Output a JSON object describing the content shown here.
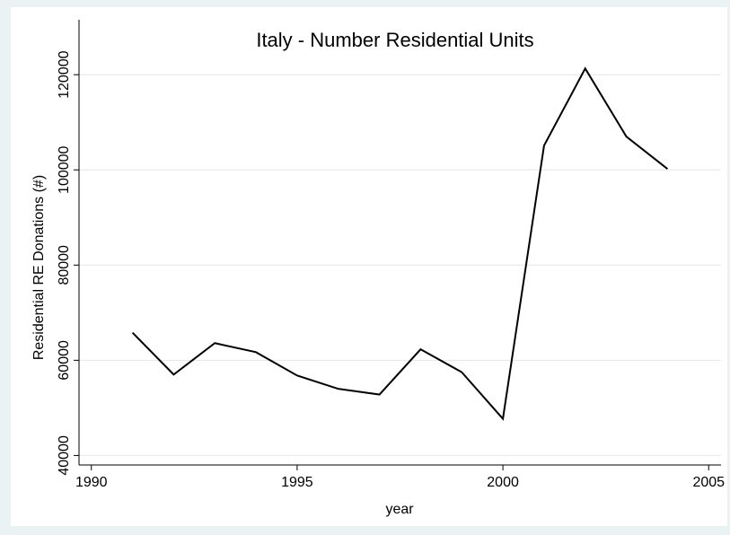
{
  "chart_data": {
    "type": "line",
    "title": "Italy - Number Residential Units",
    "x_label": "year",
    "y_label": "Residential RE Donations (#)",
    "x": [
      1991,
      1992,
      1993,
      1994,
      1995,
      1996,
      1997,
      1998,
      1999,
      2000,
      2001,
      2002,
      2003,
      2004
    ],
    "series": [
      {
        "name": "Residential RE Donations (#)",
        "color": "#000000",
        "values": [
          65800,
          57000,
          63600,
          61700,
          56800,
          54000,
          52800,
          62300,
          57500,
          47700,
          105100,
          121300,
          107000,
          100200
        ]
      }
    ],
    "xlim": [
      1989.7,
      2005.3
    ],
    "xticks": [
      1990,
      1995,
      2000,
      2005
    ],
    "ylim": [
      38000,
      124000
    ],
    "yticks": [
      40000,
      60000,
      80000,
      100000,
      120000
    ],
    "grid": true
  }
}
